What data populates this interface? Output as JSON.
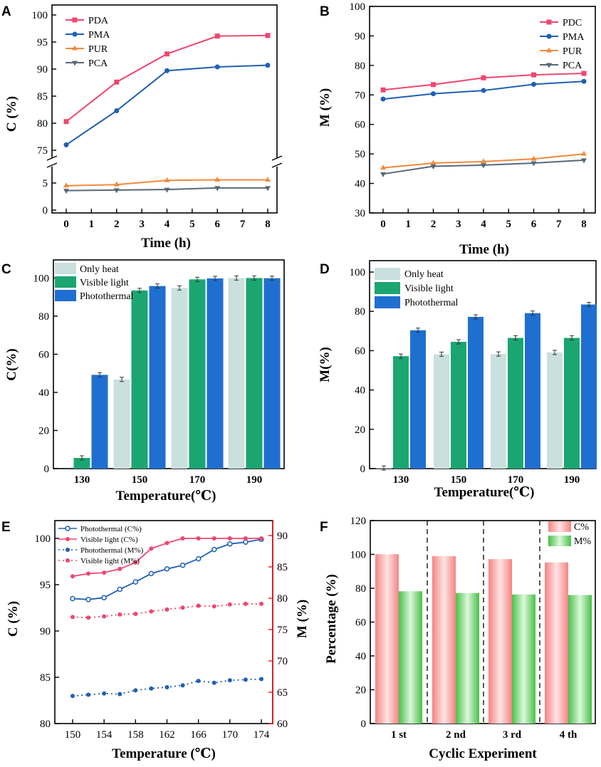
{
  "figure": {
    "panel_letters": [
      "A",
      "B",
      "C",
      "D",
      "E",
      "F"
    ]
  },
  "colors": {
    "pink": "#f0466e",
    "blue": "#1f5fb4",
    "orange": "#f28a3c",
    "slate": "#566879",
    "light": "#c9e0de",
    "green": "#1ba671",
    "bar_blue": "#1f6fd0",
    "red_axis": "#e2191c",
    "salmon": "#f9a3a3",
    "light_green": "#7fd67f"
  },
  "chart_data": [
    {
      "id": "A",
      "type": "line",
      "xlabel": "Time (h)",
      "ylabel": "C (%)",
      "x_ticks": [
        "0",
        "1",
        "2",
        "3",
        "4",
        "5",
        "6",
        "7",
        "8"
      ],
      "y_ticks_upper": [
        "75",
        "80",
        "85",
        "90",
        "95",
        "100"
      ],
      "y_ticks_lower": [
        "0",
        "5"
      ],
      "ylim_upper": [
        75,
        100
      ],
      "ylim_lower": [
        0,
        8
      ],
      "x": [
        0,
        2,
        4,
        6,
        8
      ],
      "series": [
        {
          "name": "PDA",
          "values": [
            80.3,
            87.6,
            92.8,
            96.1,
            96.2
          ],
          "color": "#f0466e",
          "marker": "square",
          "segment": "upper"
        },
        {
          "name": "PMA",
          "values": [
            76.0,
            82.3,
            89.7,
            90.4,
            90.7
          ],
          "color": "#1f5fb4",
          "marker": "circle",
          "segment": "upper"
        },
        {
          "name": "PUR",
          "values": [
            4.5,
            4.7,
            5.5,
            5.6,
            5.6
          ],
          "color": "#f28a3c",
          "marker": "triangle",
          "segment": "lower"
        },
        {
          "name": "PCA",
          "values": [
            3.6,
            3.7,
            3.8,
            4.1,
            4.1
          ],
          "color": "#566879",
          "marker": "triangle-down",
          "segment": "lower"
        }
      ]
    },
    {
      "id": "B",
      "type": "line",
      "xlabel": "Time (h)",
      "ylabel": "M (%)",
      "x_ticks": [
        "0",
        "1",
        "2",
        "3",
        "4",
        "5",
        "6",
        "7",
        "8"
      ],
      "y_ticks": [
        "30",
        "40",
        "50",
        "60",
        "70",
        "80",
        "90",
        "100"
      ],
      "ylim": [
        30,
        100
      ],
      "x": [
        0,
        2,
        4,
        6,
        8
      ],
      "series": [
        {
          "name": "PDC",
          "values": [
            71.7,
            73.5,
            75.8,
            76.8,
            77.3
          ],
          "color": "#f0466e",
          "marker": "square"
        },
        {
          "name": "PMA",
          "values": [
            68.6,
            70.4,
            71.5,
            73.6,
            74.6
          ],
          "color": "#1f5fb4",
          "marker": "circle"
        },
        {
          "name": "PUR",
          "values": [
            45.3,
            46.9,
            47.4,
            48.3,
            50.0
          ],
          "color": "#f28a3c",
          "marker": "triangle"
        },
        {
          "name": "PCA",
          "values": [
            43.2,
            45.8,
            46.2,
            46.9,
            47.9
          ],
          "color": "#566879",
          "marker": "triangle-down"
        }
      ]
    },
    {
      "id": "C",
      "type": "bar",
      "xlabel": "Temperature(℃)",
      "ylabel": "C(%)",
      "categories": [
        "130",
        "150",
        "170",
        "190"
      ],
      "y_ticks": [
        "0",
        "20",
        "40",
        "60",
        "80",
        "100"
      ],
      "ylim": [
        0,
        108
      ],
      "series": [
        {
          "name": "Only heat",
          "values": [
            0,
            46.8,
            94.8,
            100
          ],
          "color": "#c9e0de"
        },
        {
          "name": "Visible light",
          "values": [
            5.6,
            93.5,
            99.3,
            100
          ],
          "color": "#1ba671"
        },
        {
          "name": "Photothermal",
          "values": [
            49.2,
            95.8,
            99.8,
            99.9
          ],
          "color": "#1f6fd0"
        }
      ]
    },
    {
      "id": "D",
      "type": "bar",
      "xlabel": "Temperature(℃)",
      "ylabel": "M(%)",
      "categories": [
        "130",
        "150",
        "170",
        "190"
      ],
      "y_ticks": [
        "0",
        "20",
        "40",
        "60",
        "80",
        "100"
      ],
      "ylim": [
        0,
        103
      ],
      "series": [
        {
          "name": "Only heat",
          "values": [
            0.3,
            58.2,
            58.3,
            59.1
          ],
          "color": "#c9e0de"
        },
        {
          "name": "Visible light",
          "values": [
            57.2,
            64.5,
            66.5,
            66.5
          ],
          "color": "#1ba671"
        },
        {
          "name": "Photothermal",
          "values": [
            70.4,
            77.2,
            79.1,
            83.5
          ],
          "color": "#1f6fd0"
        }
      ]
    },
    {
      "id": "E",
      "type": "line-dual-axis",
      "xlabel": "Temperature (℃)",
      "ylabel": "C (%)",
      "ylabel_right": "M (%)",
      "x": [
        150,
        152,
        154,
        156,
        158,
        160,
        162,
        164,
        166,
        168,
        170,
        172,
        174
      ],
      "x_ticks": [
        "150",
        "154",
        "158",
        "162",
        "166",
        "170",
        "174"
      ],
      "y_ticks": [
        "80",
        "85",
        "90",
        "95",
        "100"
      ],
      "y_ticks_right": [
        "60",
        "65",
        "70",
        "75",
        "80",
        "85",
        "90"
      ],
      "ylim": [
        80,
        102
      ],
      "ylim_right": [
        60,
        92.5
      ],
      "series": [
        {
          "name": "Photothermal (C%)",
          "axis": "left",
          "style": "solid",
          "marker": "circle-open",
          "color": "#1f5fb4",
          "values": [
            93.5,
            93.4,
            93.6,
            94.5,
            95.3,
            96.2,
            96.7,
            97.1,
            97.8,
            98.8,
            99.4,
            99.6,
            99.9
          ]
        },
        {
          "name": "Visible light  (C%)",
          "axis": "left",
          "style": "solid",
          "marker": "circle",
          "color": "#f0466e",
          "values": [
            95.9,
            96.2,
            96.3,
            96.7,
            97.4,
            98.9,
            99.5,
            100,
            100,
            100,
            100,
            100,
            100
          ]
        },
        {
          "name": "Photothermal (M%)",
          "axis": "right",
          "style": "dotted",
          "marker": "circle",
          "color": "#1f5fb4",
          "values": [
            64.4,
            64.6,
            64.8,
            64.7,
            65.3,
            65.6,
            65.8,
            66.1,
            66.8,
            66.5,
            66.9,
            67.0,
            67.1
          ]
        },
        {
          "name": "Visible light  (M%)",
          "axis": "right",
          "style": "dotted",
          "marker": "circle",
          "color": "#f0466e",
          "values": [
            77.0,
            76.9,
            77.1,
            77.4,
            77.5,
            77.9,
            78.2,
            78.5,
            78.8,
            78.7,
            79.0,
            79.1,
            79.1
          ]
        }
      ]
    },
    {
      "id": "F",
      "type": "bar",
      "xlabel": "Cyclic Experiment",
      "ylabel": "Percentage (%)",
      "categories": [
        "1 st",
        "2 nd",
        "3 rd",
        "4 th"
      ],
      "y_ticks": [
        "0",
        "20",
        "40",
        "60",
        "80",
        "100",
        "120"
      ],
      "ylim": [
        0,
        120
      ],
      "series": [
        {
          "name": "C%",
          "values": [
            100.1,
            99.0,
            97.2,
            95.3
          ],
          "color": "#f9a3a3"
        },
        {
          "name": "M%",
          "values": [
            78.2,
            77.2,
            76.3,
            76.0
          ],
          "color": "#7fd67f"
        }
      ]
    }
  ]
}
